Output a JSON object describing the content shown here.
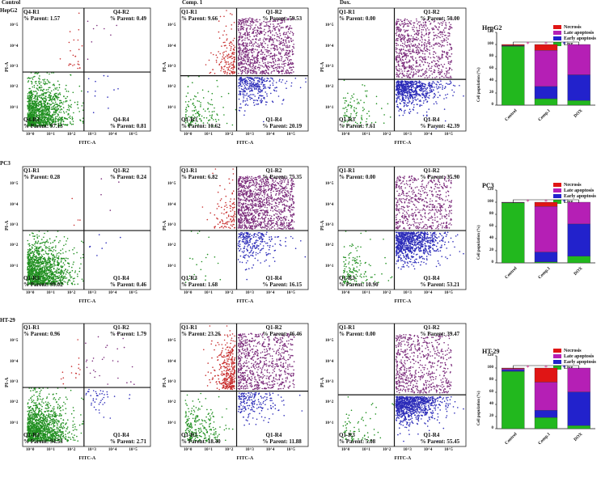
{
  "colors": {
    "live": "#22b81e",
    "early": "#2222cc",
    "late": "#b51fb5",
    "necrosis": "#e01515",
    "dot_green": "#1f8f1f",
    "dot_blue": "#2a2ab8",
    "dot_purple": "#7a2a7a",
    "dot_red": "#c83030"
  },
  "axes": {
    "x_label": "FITC-A",
    "y_label": "PI-A",
    "ticks": [
      "10^0",
      "10^1",
      "10^2",
      "10^3",
      "10^4",
      "10^5"
    ]
  },
  "flow_panels": [
    {
      "id": "hepg2-control",
      "header": "Control",
      "cell_line": "HepG2",
      "q_labels": [
        "Q4-R1",
        "Q4-R2",
        "Q4-R3",
        "Q4-R4"
      ],
      "q1": "% Parent: 1.57",
      "q2": "% Parent: 0.49",
      "q3": "% Parent: 97.13",
      "q4": "% Parent: 0.81",
      "pct": [
        1.57,
        0.49,
        97.13,
        0.81
      ]
    },
    {
      "id": "hepg2-comp1",
      "header": "Comp. 1",
      "cell_line": "",
      "q_labels": [
        "Q1-R1",
        "Q1-R2",
        "Q1-R3",
        "Q1-R4"
      ],
      "q1": "% Parent: 9.66",
      "q2": "% Parent: 59.53",
      "q3": "% Parent: 10.62",
      "q4": "% Parent: 20.19",
      "pct": [
        9.66,
        59.53,
        10.62,
        20.19
      ]
    },
    {
      "id": "hepg2-dox",
      "header": "Dox.",
      "cell_line": "",
      "q_labels": [
        "Q1-R1",
        "Q1-R2",
        "Q1-R3",
        "Q1-R4"
      ],
      "q1": "% Parent: 0.00",
      "q2": "% Parent: 50.00",
      "q3": "% Parent: 7.61",
      "q4": "% Parent: 42.39",
      "pct": [
        0.0,
        50.0,
        7.61,
        42.39
      ]
    },
    {
      "id": "pc3-control",
      "header": "",
      "cell_line": "PC3",
      "q_labels": [
        "Q1-R1",
        "Q1-R2",
        "Q1-R3",
        "Q1-R4"
      ],
      "q1": "% Parent: 0.28",
      "q2": "% Parent: 0.24",
      "q3": "% Parent: 99.02",
      "q4": "% Parent: 0.46",
      "pct": [
        0.28,
        0.24,
        99.02,
        0.46
      ]
    },
    {
      "id": "pc3-comp1",
      "header": "",
      "cell_line": "",
      "q_labels": [
        "Q1-R1",
        "Q1-R2",
        "Q1-R3",
        "Q1-R4"
      ],
      "q1": "% Parent: 6.82",
      "q2": "% Parent: 75.35",
      "q3": "% Parent: 1.68",
      "q4": "% Parent: 16.15",
      "pct": [
        6.82,
        75.35,
        1.68,
        16.15
      ]
    },
    {
      "id": "pc3-dox",
      "header": "",
      "cell_line": "",
      "q_labels": [
        "Q1-R1",
        "Q1-R2",
        "Q1-R3",
        "Q1-R4"
      ],
      "q1": "% Parent: 0.00",
      "q2": "% Parent: 35.90",
      "q3": "% Parent: 10.90",
      "q4": "% Parent: 53.21",
      "pct": [
        0.0,
        35.9,
        10.9,
        53.21
      ]
    },
    {
      "id": "ht29-control",
      "header": "",
      "cell_line": "HT-29",
      "q_labels": [
        "Q1-R1",
        "Q1-R2",
        "Q1-R3",
        "Q1-R4"
      ],
      "q1": "% Parent: 0.96",
      "q2": "% Parent: 1.79",
      "q3": "% Parent: 94.53",
      "q4": "% Parent: 2.71",
      "pct": [
        0.96,
        1.79,
        94.53,
        2.71
      ]
    },
    {
      "id": "ht29-comp1",
      "header": "",
      "cell_line": "",
      "q_labels": [
        "Q1-R1",
        "Q1-R2",
        "Q1-R3",
        "Q1-R4"
      ],
      "q1": "% Parent: 23.26",
      "q2": "% Parent: 46.46",
      "q3": "% Parent: 18.40",
      "q4": "% Parent: 11.88",
      "pct": [
        23.26,
        46.46,
        18.4,
        11.88
      ]
    },
    {
      "id": "ht29-dox",
      "header": "",
      "cell_line": "",
      "q_labels": [
        "Q1-R1",
        "Q1-R2",
        "Q1-R3",
        "Q1-R4"
      ],
      "q1": "% Parent: 0.00",
      "q2": "% Parent: 39.47",
      "q3": "% Parent: 5.08",
      "q4": "% Parent: 55.45",
      "pct": [
        0.0,
        39.47,
        5.08,
        55.45
      ]
    }
  ],
  "chart_data": [
    {
      "type": "bar",
      "stacked": true,
      "title": "HepG2",
      "categories": [
        "Control",
        "Comp.1",
        "DOX"
      ],
      "ylabel": "Cell population (%)",
      "ylim": [
        0,
        120
      ],
      "yticks": [
        0,
        20,
        40,
        60,
        80,
        100,
        120
      ],
      "significance": "*",
      "series": [
        {
          "name": "Live",
          "values": [
            97.13,
            10.62,
            7.61
          ]
        },
        {
          "name": "Early apoptosis",
          "values": [
            0.81,
            20.19,
            42.39
          ]
        },
        {
          "name": "Late apoptosis",
          "values": [
            0.49,
            59.53,
            50.0
          ]
        },
        {
          "name": "Necrosis",
          "values": [
            1.57,
            9.66,
            0.0
          ]
        }
      ],
      "legend": [
        "Necrosis",
        "Late apoptosis",
        "Early apoptosis",
        "Live"
      ]
    },
    {
      "type": "bar",
      "stacked": true,
      "title": "PC3",
      "categories": [
        "Control",
        "Comp.1",
        "DOX"
      ],
      "ylabel": "Cell population (%)",
      "ylim": [
        0,
        120
      ],
      "yticks": [
        0,
        20,
        40,
        60,
        80,
        100,
        120
      ],
      "significance": "*",
      "series": [
        {
          "name": "Live",
          "values": [
            99.02,
            1.68,
            10.9
          ]
        },
        {
          "name": "Early apoptosis",
          "values": [
            0.46,
            16.15,
            53.21
          ]
        },
        {
          "name": "Late apoptosis",
          "values": [
            0.24,
            75.35,
            35.9
          ]
        },
        {
          "name": "Necrosis",
          "values": [
            0.28,
            6.82,
            0.0
          ]
        }
      ],
      "legend": [
        "Necrosis",
        "Late apoptosis",
        "Early apoptosis",
        "Live"
      ]
    },
    {
      "type": "bar",
      "stacked": true,
      "title": "HT-29",
      "categories": [
        "Control",
        "Comp.1",
        "DOX"
      ],
      "ylabel": "Cell population (%)",
      "ylim": [
        0,
        120
      ],
      "yticks": [
        0,
        20,
        40,
        60,
        80,
        100,
        120
      ],
      "significance": "*",
      "series": [
        {
          "name": "Live",
          "values": [
            94.53,
            18.4,
            5.08
          ]
        },
        {
          "name": "Early apoptosis",
          "values": [
            2.71,
            11.88,
            55.45
          ]
        },
        {
          "name": "Late apoptosis",
          "values": [
            1.79,
            46.46,
            39.47
          ]
        },
        {
          "name": "Necrosis",
          "values": [
            0.96,
            23.26,
            0.0
          ]
        }
      ],
      "legend": [
        "Necrosis",
        "Late apoptosis",
        "Early apoptosis",
        "Live"
      ]
    }
  ]
}
